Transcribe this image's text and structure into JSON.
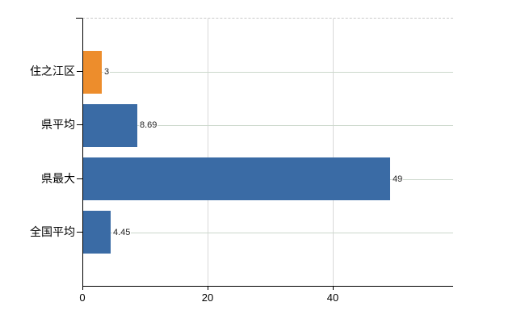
{
  "chart_data": {
    "type": "bar",
    "orientation": "horizontal",
    "title": "",
    "xlabel": "",
    "ylabel": "",
    "categories": [
      "住之江区",
      "県平均",
      "県最大",
      "全国平均"
    ],
    "values": [
      3,
      8.69,
      49,
      4.45
    ],
    "value_labels": [
      "3",
      "8.69",
      "49",
      "4.45"
    ],
    "bar_colors": [
      "#ed8d2c",
      "#3a6ba5",
      "#3a6ba5",
      "#3a6ba5"
    ],
    "x_ticks": [
      0,
      20,
      40
    ],
    "x_tick_labels": [
      "0",
      "20",
      "40"
    ],
    "xlim": [
      0,
      59
    ],
    "grid": true,
    "legend": false
  },
  "colors": {
    "background": "#ffffff",
    "axis": "#000000",
    "gridline_vertical": "#d9d9d9",
    "gridline_horizontal": "#ccd8cc",
    "top_border_dashed": "#c9c9c9",
    "value_label_text": "#222222",
    "axis_label_text": "#000000"
  }
}
